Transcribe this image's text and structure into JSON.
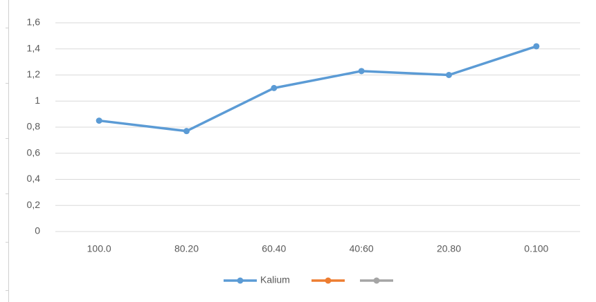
{
  "chart_data": {
    "type": "line",
    "categories": [
      "100.0",
      "80.20",
      "60.40",
      "40:60",
      "20.80",
      "0.100"
    ],
    "series": [
      {
        "name": "Kalium",
        "color": "#5b9bd5",
        "values": [
          0.85,
          0.77,
          1.1,
          1.23,
          1.2,
          1.42
        ]
      },
      {
        "name": null,
        "color": "#ed7d31",
        "values": [
          null,
          null,
          null,
          null,
          null,
          null
        ]
      },
      {
        "name": null,
        "color": "#a5a5a5",
        "values": [
          null,
          null,
          null,
          null,
          null,
          null
        ]
      }
    ],
    "ylim": [
      0,
      1.6
    ],
    "yticks": [
      0,
      {
        "value": 0.2,
        "label": "0,2"
      },
      {
        "value": 0.4,
        "label": "0,4"
      },
      {
        "value": 0.6,
        "label": "0,6"
      },
      {
        "value": 0.8,
        "label": "0,8"
      },
      1,
      {
        "value": 1.2,
        "label": "1,2"
      },
      {
        "value": 1.4,
        "label": "1,4"
      },
      {
        "value": 1.6,
        "label": "1,6"
      }
    ],
    "grid": true,
    "legend": "bottom"
  }
}
